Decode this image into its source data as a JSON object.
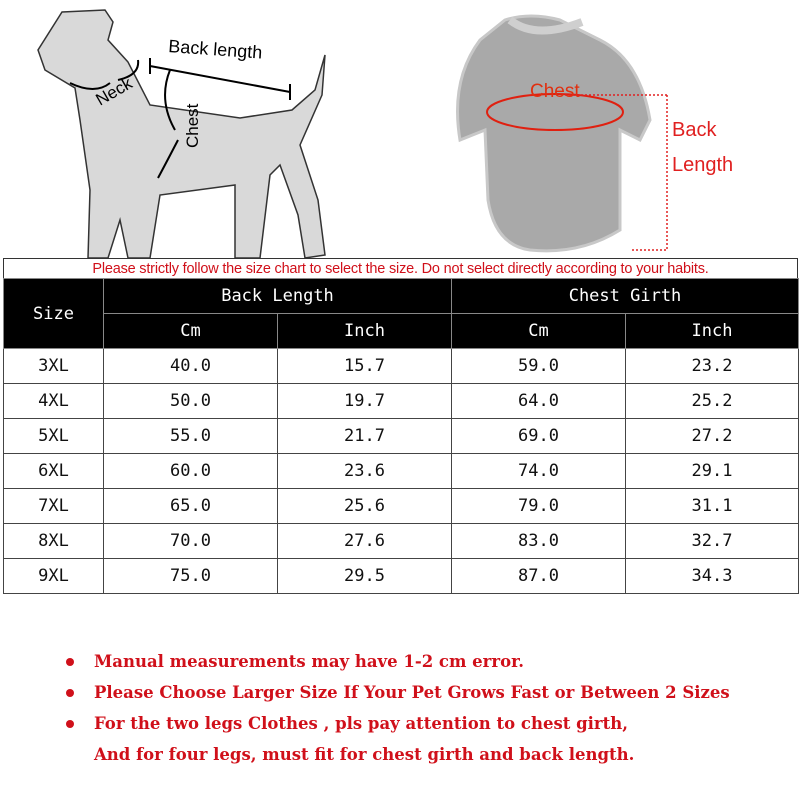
{
  "illustration": {
    "dog_labels": {
      "back_length": "Back length",
      "neck": "Neck",
      "chest": "Chest"
    },
    "sweater_labels": {
      "chest": "Chest",
      "back": "Back",
      "length": "Length"
    }
  },
  "notice": "Please strictly follow the size chart to select the size. Do not select directly according to your habits.",
  "table": {
    "size_header": "Size",
    "groups": [
      "Back Length",
      "Chest Girth"
    ],
    "units": [
      "Cm",
      "Inch",
      "Cm",
      "Inch"
    ],
    "rows": [
      [
        "3XL",
        "40.0",
        "15.7",
        "59.0",
        "23.2"
      ],
      [
        "4XL",
        "50.0",
        "19.7",
        "64.0",
        "25.2"
      ],
      [
        "5XL",
        "55.0",
        "21.7",
        "69.0",
        "27.2"
      ],
      [
        "6XL",
        "60.0",
        "23.6",
        "74.0",
        "29.1"
      ],
      [
        "7XL",
        "65.0",
        "25.6",
        "79.0",
        "31.1"
      ],
      [
        "8XL",
        "70.0",
        "27.6",
        "83.0",
        "32.7"
      ],
      [
        "9XL",
        "75.0",
        "29.5",
        "87.0",
        "34.3"
      ]
    ]
  },
  "notes": [
    "Manual measurements may have 1-2 cm error.",
    "Please Choose Larger Size If Your Pet Grows Fast or Between 2 Sizes",
    "For the two legs Clothes , pls pay attention to chest girth,",
    "And for four legs, must fit for chest girth and back length."
  ],
  "colors": {
    "accent_red": "#d0101a",
    "header_bg": "#000000"
  }
}
